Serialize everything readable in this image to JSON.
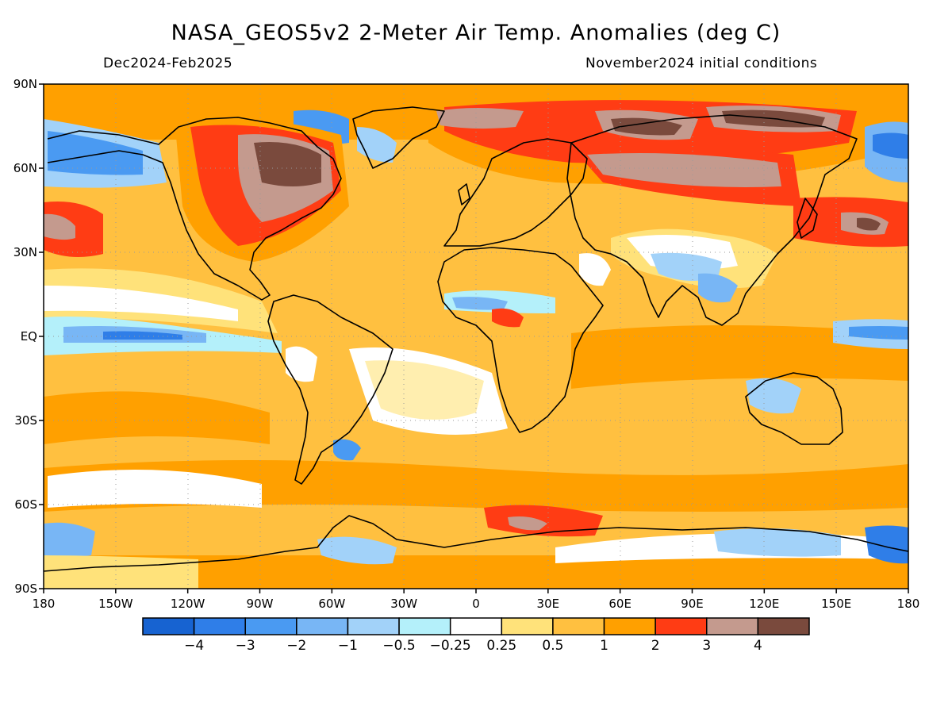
{
  "header": {
    "title": "NASA_GEOS5v2 2-Meter Air Temp. Anomalies (deg C)",
    "period": "Dec2024-Feb2025",
    "initial_conditions": "November2024 initial conditions"
  },
  "axes": {
    "lat_ticks": [
      {
        "label": "90N",
        "value": 90
      },
      {
        "label": "60N",
        "value": 60
      },
      {
        "label": "30N",
        "value": 30
      },
      {
        "label": "EQ",
        "value": 0
      },
      {
        "label": "30S",
        "value": -30
      },
      {
        "label": "60S",
        "value": -60
      },
      {
        "label": "90S",
        "value": -90
      }
    ],
    "lon_ticks": [
      {
        "label": "180",
        "value": -180
      },
      {
        "label": "150W",
        "value": -150
      },
      {
        "label": "120W",
        "value": -120
      },
      {
        "label": "90W",
        "value": -90
      },
      {
        "label": "60W",
        "value": -60
      },
      {
        "label": "30W",
        "value": -30
      },
      {
        "label": "0",
        "value": 0
      },
      {
        "label": "30E",
        "value": 30
      },
      {
        "label": "60E",
        "value": 60
      },
      {
        "label": "90E",
        "value": 90
      },
      {
        "label": "120E",
        "value": 120
      },
      {
        "label": "150E",
        "value": 150
      },
      {
        "label": "180",
        "value": 180
      }
    ]
  },
  "colorbar": {
    "colors": [
      "#1763d1",
      "#2f7ee8",
      "#4a9af2",
      "#78b6f5",
      "#a2d2f9",
      "#b4f0fa",
      "#ffffff",
      "#ffe27a",
      "#ffc040",
      "#ffa000",
      "#ff3c14",
      "#c49a8e",
      "#7a4a3d"
    ],
    "labels": [
      "−4",
      "−3",
      "−2",
      "−1",
      "−0.5",
      "−0.25",
      "0.25",
      "0.5",
      "1",
      "2",
      "3",
      "4"
    ]
  },
  "map_style": {
    "ocean_base": "#ffc040",
    "continent_outline": "#000000",
    "grid": "dotted"
  }
}
